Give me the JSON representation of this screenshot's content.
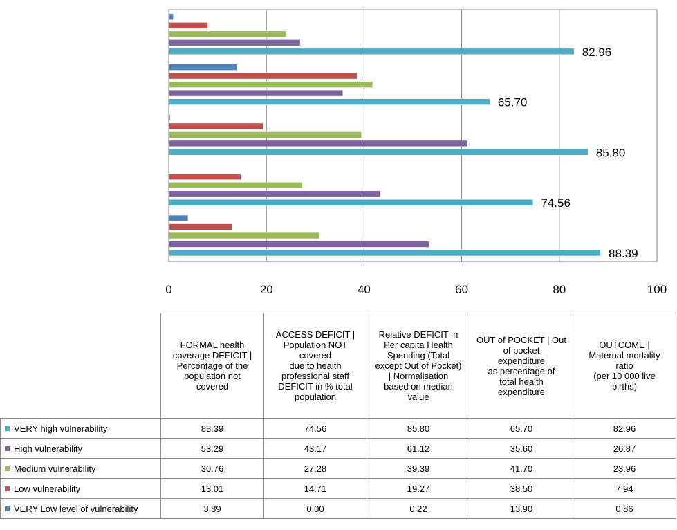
{
  "chart_data": {
    "type": "bar",
    "orientation": "horizontal",
    "categories": [
      "FORMAL health coverage DEFICIT | Percentage of the population not covered",
      "ACCESS DEFICIT | Population NOT covered due to health professional staff DEFICIT in % total population",
      "Relative DEFICIT in Per capita Health Spending (Total except Out of Pocket) | Normalisation based on median value",
      "OUT of POCKET | Out of pocket expenditure as percentage of total health expenditure",
      "OUTCOME | Maternal mortality ratio (per 10 000 live births)"
    ],
    "series": [
      {
        "name": "VERY high vulnerability",
        "color": "#4bacc6",
        "values": [
          "88.39",
          "74.56",
          "85.80",
          "65.70",
          "82.96"
        ]
      },
      {
        "name": "High vulnerability",
        "color": "#8064a2",
        "values": [
          "53.29",
          "43.17",
          "61.12",
          "35.60",
          "26.87"
        ]
      },
      {
        "name": "Medium vulnerability",
        "color": "#9bbb59",
        "values": [
          "30.76",
          "27.28",
          "39.39",
          "41.70",
          "23.96"
        ]
      },
      {
        "name": "Low vulnerability",
        "color": "#c0504d",
        "values": [
          "13.01",
          "14.71",
          "19.27",
          "38.50",
          "7.94"
        ]
      },
      {
        "name": "VERY Low level of vulnerability",
        "color": "#4f81bd",
        "values": [
          "3.89",
          "0.00",
          "0.22",
          "13.90",
          "0.86"
        ]
      }
    ],
    "xlim": [
      0,
      100
    ],
    "x_ticks": [
      "0",
      "20",
      "40",
      "60",
      "80",
      "100"
    ],
    "data_labels_series": "VERY high vulnerability",
    "grid": true,
    "legend": "data table below chart"
  },
  "table": {
    "headers": [
      "FORMAL health\ncoverage DEFICIT |\nPercentage of the\npopulation not\ncovered",
      "ACCESS DEFICIT |\nPopulation NOT\ncovered\ndue to health\nprofessional staff\nDEFICIT in % total\npopulation",
      "Relative DEFICIT in\nPer capita Health\nSpending (Total\nexcept Out of Pocket)\n| Normalisation\nbased on median\nvalue",
      "OUT of POCKET | Out\nof pocket\nexpenditure\nas percentage of\ntotal health\nexpenditure",
      "OUTCOME |\nMaternal mortality\nratio\n(per 10 000 live\nbirths)"
    ]
  }
}
